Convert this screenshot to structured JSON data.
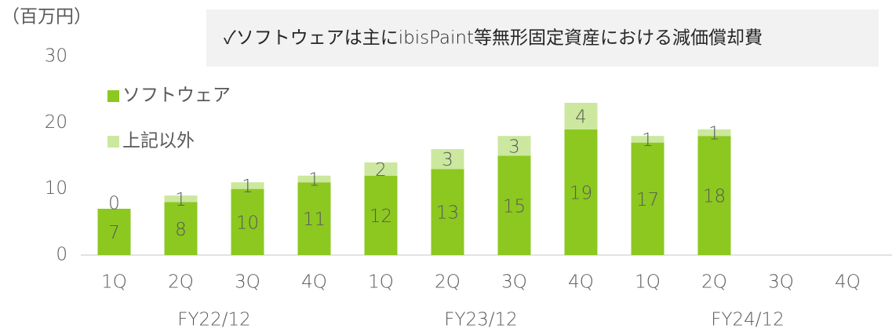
{
  "chart_data": {
    "type": "stacked_bar",
    "unit_label": "（百万円）",
    "annotation": "✓ソフトウェアは主にibisPaint等無形固定資産における減価償却費",
    "categories": [
      "1Q",
      "2Q",
      "3Q",
      "4Q",
      "1Q",
      "2Q",
      "3Q",
      "4Q",
      "1Q",
      "2Q",
      "3Q",
      "4Q"
    ],
    "groups": [
      {
        "label": "FY22/12",
        "size": 4
      },
      {
        "label": "FY23/12",
        "size": 4
      },
      {
        "label": "FY24/12",
        "size": 4
      }
    ],
    "series": [
      {
        "name": "ソフトウェア",
        "color": "#8cc820",
        "values": [
          7,
          8,
          10,
          11,
          12,
          13,
          15,
          19,
          17,
          18,
          null,
          null
        ]
      },
      {
        "name": "上記以外",
        "color": "#cbe89e",
        "values": [
          0,
          1,
          1,
          1,
          2,
          3,
          3,
          4,
          1,
          1,
          null,
          null
        ]
      }
    ],
    "ylim": [
      0,
      30
    ],
    "yticks": [
      0,
      10,
      20,
      30
    ],
    "grid": false
  }
}
